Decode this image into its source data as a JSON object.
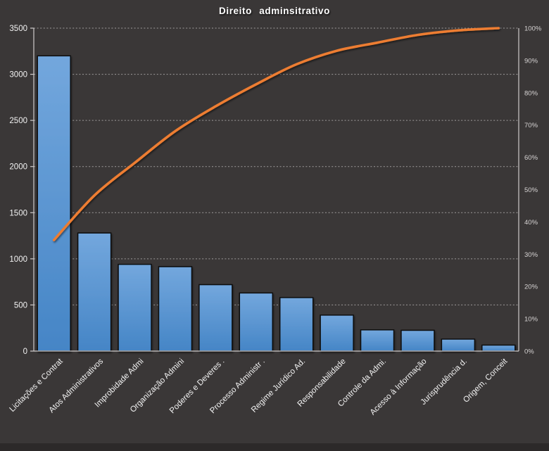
{
  "window": {
    "background_color": "#3a3737",
    "bottom_strip_color": "#2c2929"
  },
  "chart_data": {
    "type": "bar+line (pareto)",
    "title": "Direito adminsitrativo",
    "categories": [
      "Licitações e Contrat",
      "Atos Administrativos",
      "Improbidade Admi",
      "Organização Admini",
      "Poderes e Deveres .",
      "Processo Administr .",
      "Regime Jurídico Ad.",
      "Responsabilidade",
      "Controle da Admi.",
      "Acesso à Informação",
      "Jurisprudência d.",
      "Origem, Conceit"
    ],
    "bar_values": [
      3200,
      1280,
      940,
      915,
      720,
      630,
      580,
      390,
      230,
      225,
      130,
      65
    ],
    "cumulative_pct": [
      34.4,
      48.2,
      58.3,
      68.1,
      75.8,
      82.6,
      88.8,
      93.0,
      95.5,
      97.9,
      99.3,
      100.0
    ],
    "left_axis": {
      "min": 0,
      "max": 3500,
      "step": 500,
      "tick_labels": [
        "0",
        "500",
        "1000",
        "1500",
        "2000",
        "2500",
        "3000",
        "3500"
      ]
    },
    "right_axis": {
      "min": 0,
      "max": 100,
      "step": 10,
      "tick_labels": [
        "0%",
        "10%",
        "20%",
        "30%",
        "40%",
        "50%",
        "60%",
        "70%",
        "80%",
        "90%",
        "100%"
      ]
    },
    "grid": "horizontal dashed, one line per 500 units of left axis",
    "legend": "none",
    "colors": {
      "background": "#3a3737",
      "bar_fill_top": "#73a7dd",
      "bar_fill_bottom": "#4585c6",
      "bar_border": "#0d0d0d",
      "line": "#ed7d31",
      "axis": "#cfcccc",
      "gridline": "#b0adad",
      "title_text": "#ffffff",
      "left_axis_text": "#f2f2f2",
      "right_axis_text": "#d6d3d3",
      "category_text": "#f2f2f2"
    }
  }
}
